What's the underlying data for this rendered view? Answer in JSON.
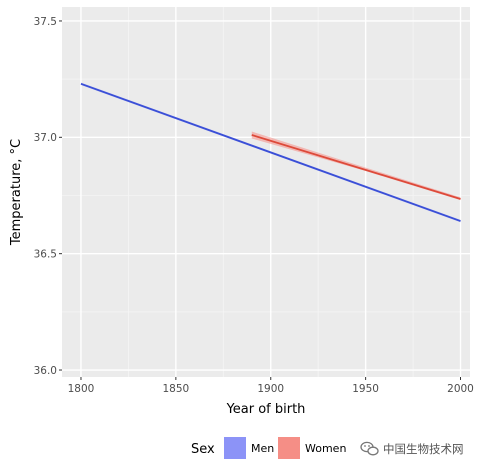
{
  "chart_data": {
    "type": "line",
    "title": "",
    "xlabel": "Year of birth",
    "ylabel": "Temperature, °C",
    "xlim": [
      1790,
      2005
    ],
    "ylim": [
      35.97,
      37.56
    ],
    "x_ticks": [
      1800,
      1850,
      1900,
      1950,
      2000
    ],
    "y_ticks": [
      36.0,
      36.5,
      37.0,
      37.5
    ],
    "x_tick_labels": [
      "1800",
      "1850",
      "1900",
      "1950",
      "2000"
    ],
    "y_tick_labels": [
      "36.0",
      "36.5",
      "37.0",
      "37.5"
    ],
    "grid": true,
    "legend": {
      "title": "Sex",
      "placement": "bottom"
    },
    "series": [
      {
        "name": "Men",
        "color": "#3a4fd6",
        "legend_color": "#8c93f7",
        "points": [
          {
            "x": 1800,
            "y": 37.23
          },
          {
            "x": 2000,
            "y": 36.64
          }
        ],
        "band": [
          {
            "x": 1800,
            "lo": 37.225,
            "hi": 37.235
          },
          {
            "x": 2000,
            "lo": 36.635,
            "hi": 36.645
          }
        ]
      },
      {
        "name": "Women",
        "color": "#dd4a3a",
        "legend_color": "#f58e86",
        "points": [
          {
            "x": 1890,
            "y": 37.01
          },
          {
            "x": 2000,
            "y": 36.735
          }
        ],
        "band": [
          {
            "x": 1890,
            "lo": 36.995,
            "hi": 37.025
          },
          {
            "x": 1950,
            "lo": 36.855,
            "hi": 36.87
          },
          {
            "x": 2000,
            "lo": 36.73,
            "hi": 36.742
          }
        ]
      }
    ]
  },
  "watermark": {
    "text": "中国生物技术网",
    "icon": "wechat-icon"
  }
}
